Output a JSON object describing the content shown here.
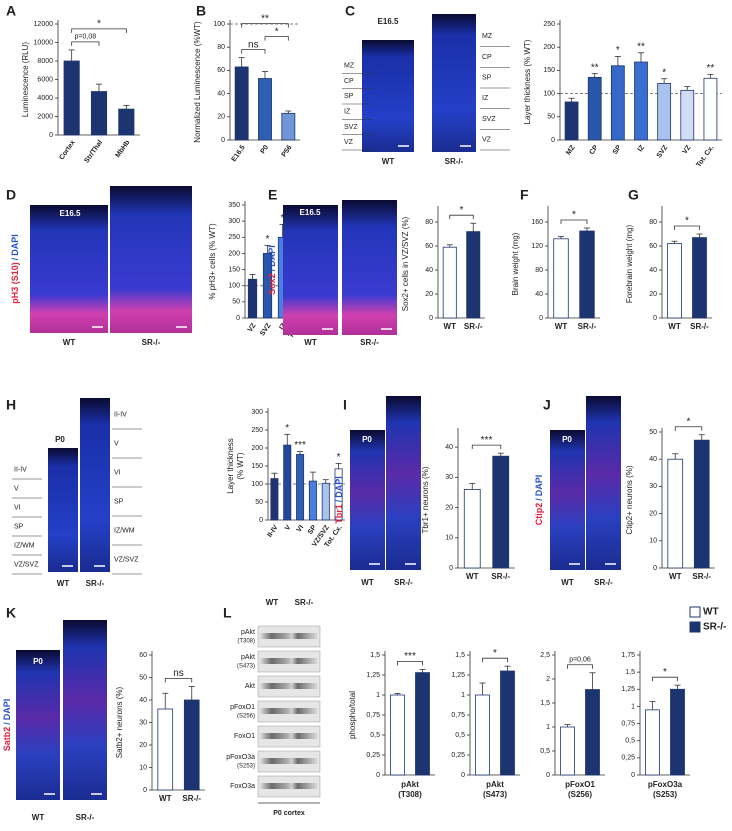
{
  "panel_letters": [
    "A",
    "B",
    "C",
    "D",
    "E",
    "F",
    "G",
    "H",
    "I",
    "J",
    "K",
    "L"
  ],
  "chart_data": [
    {
      "type": "bar",
      "ylabel": [
        "Luminescence (RLU)"
      ],
      "categories": [
        "Cortex",
        "Str/Thal",
        "MbHb"
      ],
      "values": [
        8000,
        4700,
        2800
      ],
      "errors": [
        1200,
        800,
        400
      ],
      "colors": [
        "#1c3570",
        "#1c3570",
        "#1c3570"
      ],
      "ylim": [
        0,
        12000
      ],
      "yticks": [
        0,
        2000,
        4000,
        6000,
        8000,
        10000,
        12000
      ],
      "annotations": [
        {
          "text": "p=0,08",
          "categories": [
            "Cortex",
            "Str/Thal"
          ]
        },
        {
          "text": "*",
          "categories": [
            "Cortex",
            "MbHb"
          ]
        }
      ]
    },
    {
      "type": "bar",
      "ylabel": [
        "Normalized Luminescence (%WT)"
      ],
      "categories": [
        "E16.5",
        "P0",
        "P56"
      ],
      "values": [
        63,
        53,
        23
      ],
      "errors": [
        8,
        6,
        2
      ],
      "colors": [
        "#1c3570",
        "#2f5fb3",
        "#6f97d8"
      ],
      "ylim": [
        0,
        100
      ],
      "yticks": [
        0,
        20,
        40,
        60,
        80,
        100
      ],
      "reference_line": 100,
      "annotations": [
        {
          "text": "ns",
          "categories": [
            "E16.5",
            "P0"
          ]
        },
        {
          "text": "*",
          "categories": [
            "P0",
            "P56"
          ]
        },
        {
          "text": "**",
          "categories": [
            "E16.5",
            "P56"
          ]
        }
      ]
    },
    {
      "type": "bar",
      "ylabel": [
        "Layer thickness (% WT)"
      ],
      "categories": [
        "MZ",
        "CP",
        "SP",
        "IZ",
        "SVZ",
        "VZ",
        "Tot. Cx."
      ],
      "values": [
        82,
        135,
        160,
        168,
        122,
        107,
        133
      ],
      "errors": [
        8,
        8,
        20,
        20,
        10,
        8,
        8
      ],
      "colors": [
        "#1c3570",
        "#2856a8",
        "#3568c8",
        "#3a6fd0",
        "#a9c3ec",
        "#cfdcf3",
        "#ffffff"
      ],
      "ylim": [
        0,
        250
      ],
      "yticks": [
        0,
        50,
        100,
        150,
        200,
        250
      ],
      "reference_line": 100,
      "annotations": [
        {
          "text": "**",
          "category": "CP"
        },
        {
          "text": "*",
          "category": "SP"
        },
        {
          "text": "**",
          "category": "IZ"
        },
        {
          "text": "*",
          "category": "SVZ"
        },
        {
          "text": "**",
          "category": "Tot. Cx."
        }
      ]
    },
    {
      "type": "bar",
      "ylabel": [
        "% pH3+ cells (% WT)"
      ],
      "categories": [
        "VZ",
        "SVZ",
        "IZ",
        "Total"
      ],
      "values": [
        120,
        200,
        250,
        155
      ],
      "errors": [
        15,
        25,
        40,
        15
      ],
      "colors": [
        "#1c3570",
        "#2856a8",
        "#4a7ee0",
        "#ffffff"
      ],
      "ylim": [
        0,
        350
      ],
      "yticks": [
        0,
        50,
        100,
        150,
        200,
        250,
        300,
        350
      ],
      "reference_line": 100,
      "annotations": [
        {
          "text": "*",
          "category": "SVZ"
        },
        {
          "text": "*",
          "category": "IZ"
        },
        {
          "text": "**",
          "category": "Total"
        }
      ]
    },
    {
      "type": "bar",
      "ylabel": [
        "Sox2+ cells in VZ/SVZ (%)"
      ],
      "categories": [
        "WT",
        "SR-/-"
      ],
      "values": [
        59,
        72
      ],
      "errors": [
        2,
        7
      ],
      "colors": [
        "#ffffff",
        "#1c3570"
      ],
      "ylim": [
        0,
        90
      ],
      "yticks": [
        0,
        20,
        40,
        60,
        80
      ],
      "annotations": [
        {
          "text": "*",
          "categories": [
            "WT",
            "SR-/-"
          ]
        }
      ]
    },
    {
      "type": "bar",
      "ylabel": [
        "Brain weight (mg)"
      ],
      "categories": [
        "WT",
        "SR-/-"
      ],
      "values": [
        132,
        145
      ],
      "errors": [
        4,
        5
      ],
      "colors": [
        "#ffffff",
        "#1c3570"
      ],
      "ylim": [
        0,
        180
      ],
      "yticks": [
        0,
        40,
        80,
        120,
        160
      ],
      "annotations": [
        {
          "text": "*",
          "categories": [
            "WT",
            "SR-/-"
          ]
        }
      ]
    },
    {
      "type": "bar",
      "ylabel": [
        "Forebrain weight (mg)"
      ],
      "categories": [
        "WT",
        "SR-/-"
      ],
      "values": [
        62,
        67
      ],
      "errors": [
        2,
        3
      ],
      "colors": [
        "#ffffff",
        "#1c3570"
      ],
      "ylim": [
        0,
        90
      ],
      "yticks": [
        0,
        20,
        40,
        60,
        80
      ],
      "annotations": [
        {
          "text": "*",
          "categories": [
            "WT",
            "SR-/-"
          ]
        }
      ]
    },
    {
      "type": "bar",
      "ylabel": [
        "Layer thickness",
        "(% WT)"
      ],
      "categories": [
        "II-IV",
        "V",
        "VI",
        "SP",
        "VZ/SVZ",
        "Tot. Cx."
      ],
      "values": [
        115,
        208,
        182,
        108,
        102,
        142
      ],
      "errors": [
        15,
        30,
        8,
        25,
        10,
        15
      ],
      "colors": [
        "#1c3570",
        "#23479a",
        "#2f5fb3",
        "#4a7ee0",
        "#a9c3ec",
        "#ffffff"
      ],
      "ylim": [
        0,
        300
      ],
      "yticks": [
        0,
        50,
        100,
        150,
        200,
        250,
        300
      ],
      "reference_line": 100,
      "annotations": [
        {
          "text": "*",
          "category": "V"
        },
        {
          "text": "***",
          "category": "VI"
        },
        {
          "text": "*",
          "category": "Tot. Cx."
        }
      ]
    },
    {
      "type": "bar",
      "ylabel": [
        "Tbr1+ neurons (%)"
      ],
      "categories": [
        "WT",
        "SR-/-"
      ],
      "values": [
        26,
        37
      ],
      "errors": [
        2,
        1
      ],
      "colors": [
        "#ffffff",
        "#1c3570"
      ],
      "ylim": [
        0,
        45
      ],
      "yticks": [
        0,
        10,
        20,
        30,
        40
      ],
      "annotations": [
        {
          "text": "***",
          "categories": [
            "WT",
            "SR-/-"
          ]
        }
      ]
    },
    {
      "type": "bar",
      "ylabel": [
        "Ctip2+ neurons (%)"
      ],
      "categories": [
        "WT",
        "SR-/-"
      ],
      "values": [
        40,
        47
      ],
      "errors": [
        2,
        2
      ],
      "colors": [
        "#ffffff",
        "#1c3570"
      ],
      "ylim": [
        0,
        50
      ],
      "yticks": [
        0,
        10,
        20,
        30,
        40,
        50
      ],
      "annotations": [
        {
          "text": "*",
          "categories": [
            "WT",
            "SR-/-"
          ]
        }
      ]
    },
    {
      "type": "bar",
      "ylabel": [
        "Satb2+ neurons (%)"
      ],
      "categories": [
        "WT",
        "SR-/-"
      ],
      "values": [
        36,
        40
      ],
      "errors": [
        7,
        6
      ],
      "colors": [
        "#ffffff",
        "#1c3570"
      ],
      "ylim": [
        0,
        60
      ],
      "yticks": [
        0,
        10,
        20,
        30,
        40,
        50,
        60
      ],
      "annotations": [
        {
          "text": "ns",
          "categories": [
            "WT",
            "SR-/-"
          ]
        }
      ]
    },
    {
      "type": "bar",
      "ylabel": [
        "phospho/total"
      ],
      "xlabel": [
        "pAkt",
        "(T308)"
      ],
      "values": [
        1.0,
        1.28
      ],
      "errors": [
        0.02,
        0.04
      ],
      "colors": [
        "#ffffff",
        "#1c3570"
      ],
      "ylim": [
        0,
        1.5
      ],
      "yticks": [
        0,
        {
          "value": 0.25,
          "label": "0,25"
        },
        {
          "value": 0.5,
          "label": "0,5"
        },
        {
          "value": 0.75,
          "label": "0,75"
        },
        1,
        {
          "value": 1.25,
          "label": "1,25"
        },
        {
          "value": 1.5,
          "label": "1,5"
        }
      ],
      "annotations": [
        {
          "text": "***",
          "bars": [
            0,
            1
          ]
        }
      ]
    },
    {
      "type": "bar",
      "xlabel": [
        "pAkt",
        "(S473)"
      ],
      "values": [
        1.0,
        1.3
      ],
      "errors": [
        0.15,
        0.06
      ],
      "colors": [
        "#ffffff",
        "#1c3570"
      ],
      "ylim": [
        0,
        1.5
      ],
      "yticks": [
        0,
        {
          "value": 0.25,
          "label": "0,25"
        },
        {
          "value": 0.5,
          "label": "0,5"
        },
        {
          "value": 0.75,
          "label": "0,75"
        },
        1,
        {
          "value": 1.25,
          "label": "1,25"
        },
        {
          "value": 1.5,
          "label": "1,5"
        }
      ],
      "annotations": [
        {
          "text": "*",
          "bars": [
            0,
            1
          ]
        }
      ]
    },
    {
      "type": "bar",
      "xlabel": [
        "pFoxO1",
        "(S256)"
      ],
      "values": [
        1.0,
        1.78
      ],
      "errors": [
        0.05,
        0.35
      ],
      "colors": [
        "#ffffff",
        "#1c3570"
      ],
      "ylim": [
        0,
        2.5
      ],
      "yticks": [
        0,
        {
          "value": 0.5,
          "label": "0,5"
        },
        1,
        {
          "value": 1.5,
          "label": "1,5"
        },
        2,
        {
          "value": 2.5,
          "label": "2,5"
        }
      ],
      "annotations": [
        {
          "text": "p=0,06",
          "bars": [
            0,
            1
          ]
        }
      ]
    },
    {
      "type": "bar",
      "xlabel": [
        "pFoxO3a",
        "(S253)"
      ],
      "values": [
        0.95,
        1.25
      ],
      "errors": [
        0.12,
        0.06
      ],
      "colors": [
        "#ffffff",
        "#1c3570"
      ],
      "ylim": [
        0,
        1.75
      ],
      "yticks": [
        0,
        {
          "value": 0.25,
          "label": "0,25"
        },
        {
          "value": 0.5,
          "label": "0,5"
        },
        {
          "value": 0.75,
          "label": "0,75"
        },
        1,
        {
          "value": 1.25,
          "label": "1,25"
        },
        {
          "value": 1.5,
          "label": "1,5"
        },
        {
          "value": 1.75,
          "label": "1,75"
        }
      ],
      "annotations": [
        {
          "text": "*",
          "bars": [
            0,
            1
          ]
        }
      ]
    }
  ],
  "legend": [
    {
      "name": "WT",
      "color": "#ffffff"
    },
    {
      "name": "SR-/-",
      "color": "#1c3570"
    }
  ],
  "images": [
    {
      "stage": "E16.5",
      "genotypes": [
        "WT",
        "SR-/-"
      ],
      "wt_layers": [
        "MZ",
        "CP",
        "SP",
        "IZ",
        "SVZ",
        "VZ"
      ],
      "ko_layers": [
        "MZ",
        "CP",
        "SP",
        "IZ",
        "SVZ",
        "VZ"
      ]
    },
    {
      "stage": "E16.5",
      "genotypes": [
        "WT",
        "SR-/-"
      ],
      "stain": [
        "pH3 (S10)",
        "/",
        "DAPI"
      ],
      "stain_colors": [
        "#e8203c",
        "#2a4fd0",
        "#2a4fd0"
      ]
    },
    {
      "stage": "E16.5",
      "genotypes": [
        "WT",
        "SR-/-"
      ],
      "stain": [
        "Sox2",
        "/",
        "DAPI"
      ],
      "stain_colors": [
        "#e8203c",
        "#2a4fd0",
        "#2a4fd0"
      ]
    },
    {
      "stage": "P0",
      "genotypes": [
        "WT",
        "SR-/-"
      ],
      "wt_layers": [
        "II-IV",
        "V",
        "VI",
        "SP",
        "IZ/WM",
        "VZ/SVZ"
      ],
      "ko_layers": [
        "II-IV",
        "V",
        "VI",
        "SP",
        "IZ/WM",
        "VZ/SVZ"
      ]
    },
    {
      "stage": "P0",
      "genotypes": [
        "WT",
        "SR-/-"
      ],
      "stain": [
        "Tbr1",
        "/",
        "DAPI"
      ],
      "stain_colors": [
        "#e8203c",
        "#2a4fd0",
        "#2a4fd0"
      ]
    },
    {
      "stage": "P0",
      "genotypes": [
        "WT",
        "SR-/-"
      ],
      "stain": [
        "Ctip2",
        "/",
        "DAPI"
      ],
      "stain_colors": [
        "#e8203c",
        "#2a4fd0",
        "#2a4fd0"
      ]
    },
    {
      "stage": "P0",
      "genotypes": [
        "WT",
        "SR-/-"
      ],
      "stain": [
        "Satb2",
        "/",
        "DAPI"
      ],
      "stain_colors": [
        "#e8203c",
        "#2a4fd0",
        "#2a4fd0"
      ]
    }
  ],
  "blot": {
    "genotypes": [
      "WT",
      "SR-/-"
    ],
    "rows": [
      [
        "pAkt",
        "(T308)"
      ],
      [
        "pAkt",
        "(S473)"
      ],
      [
        "Akt"
      ],
      [
        "pFoxO1",
        "(S256)"
      ],
      [
        "FoxO1"
      ],
      [
        "pFoxO3a",
        "(S253)"
      ],
      [
        "FoxO3a"
      ]
    ],
    "footer": "P0 cortex"
  }
}
